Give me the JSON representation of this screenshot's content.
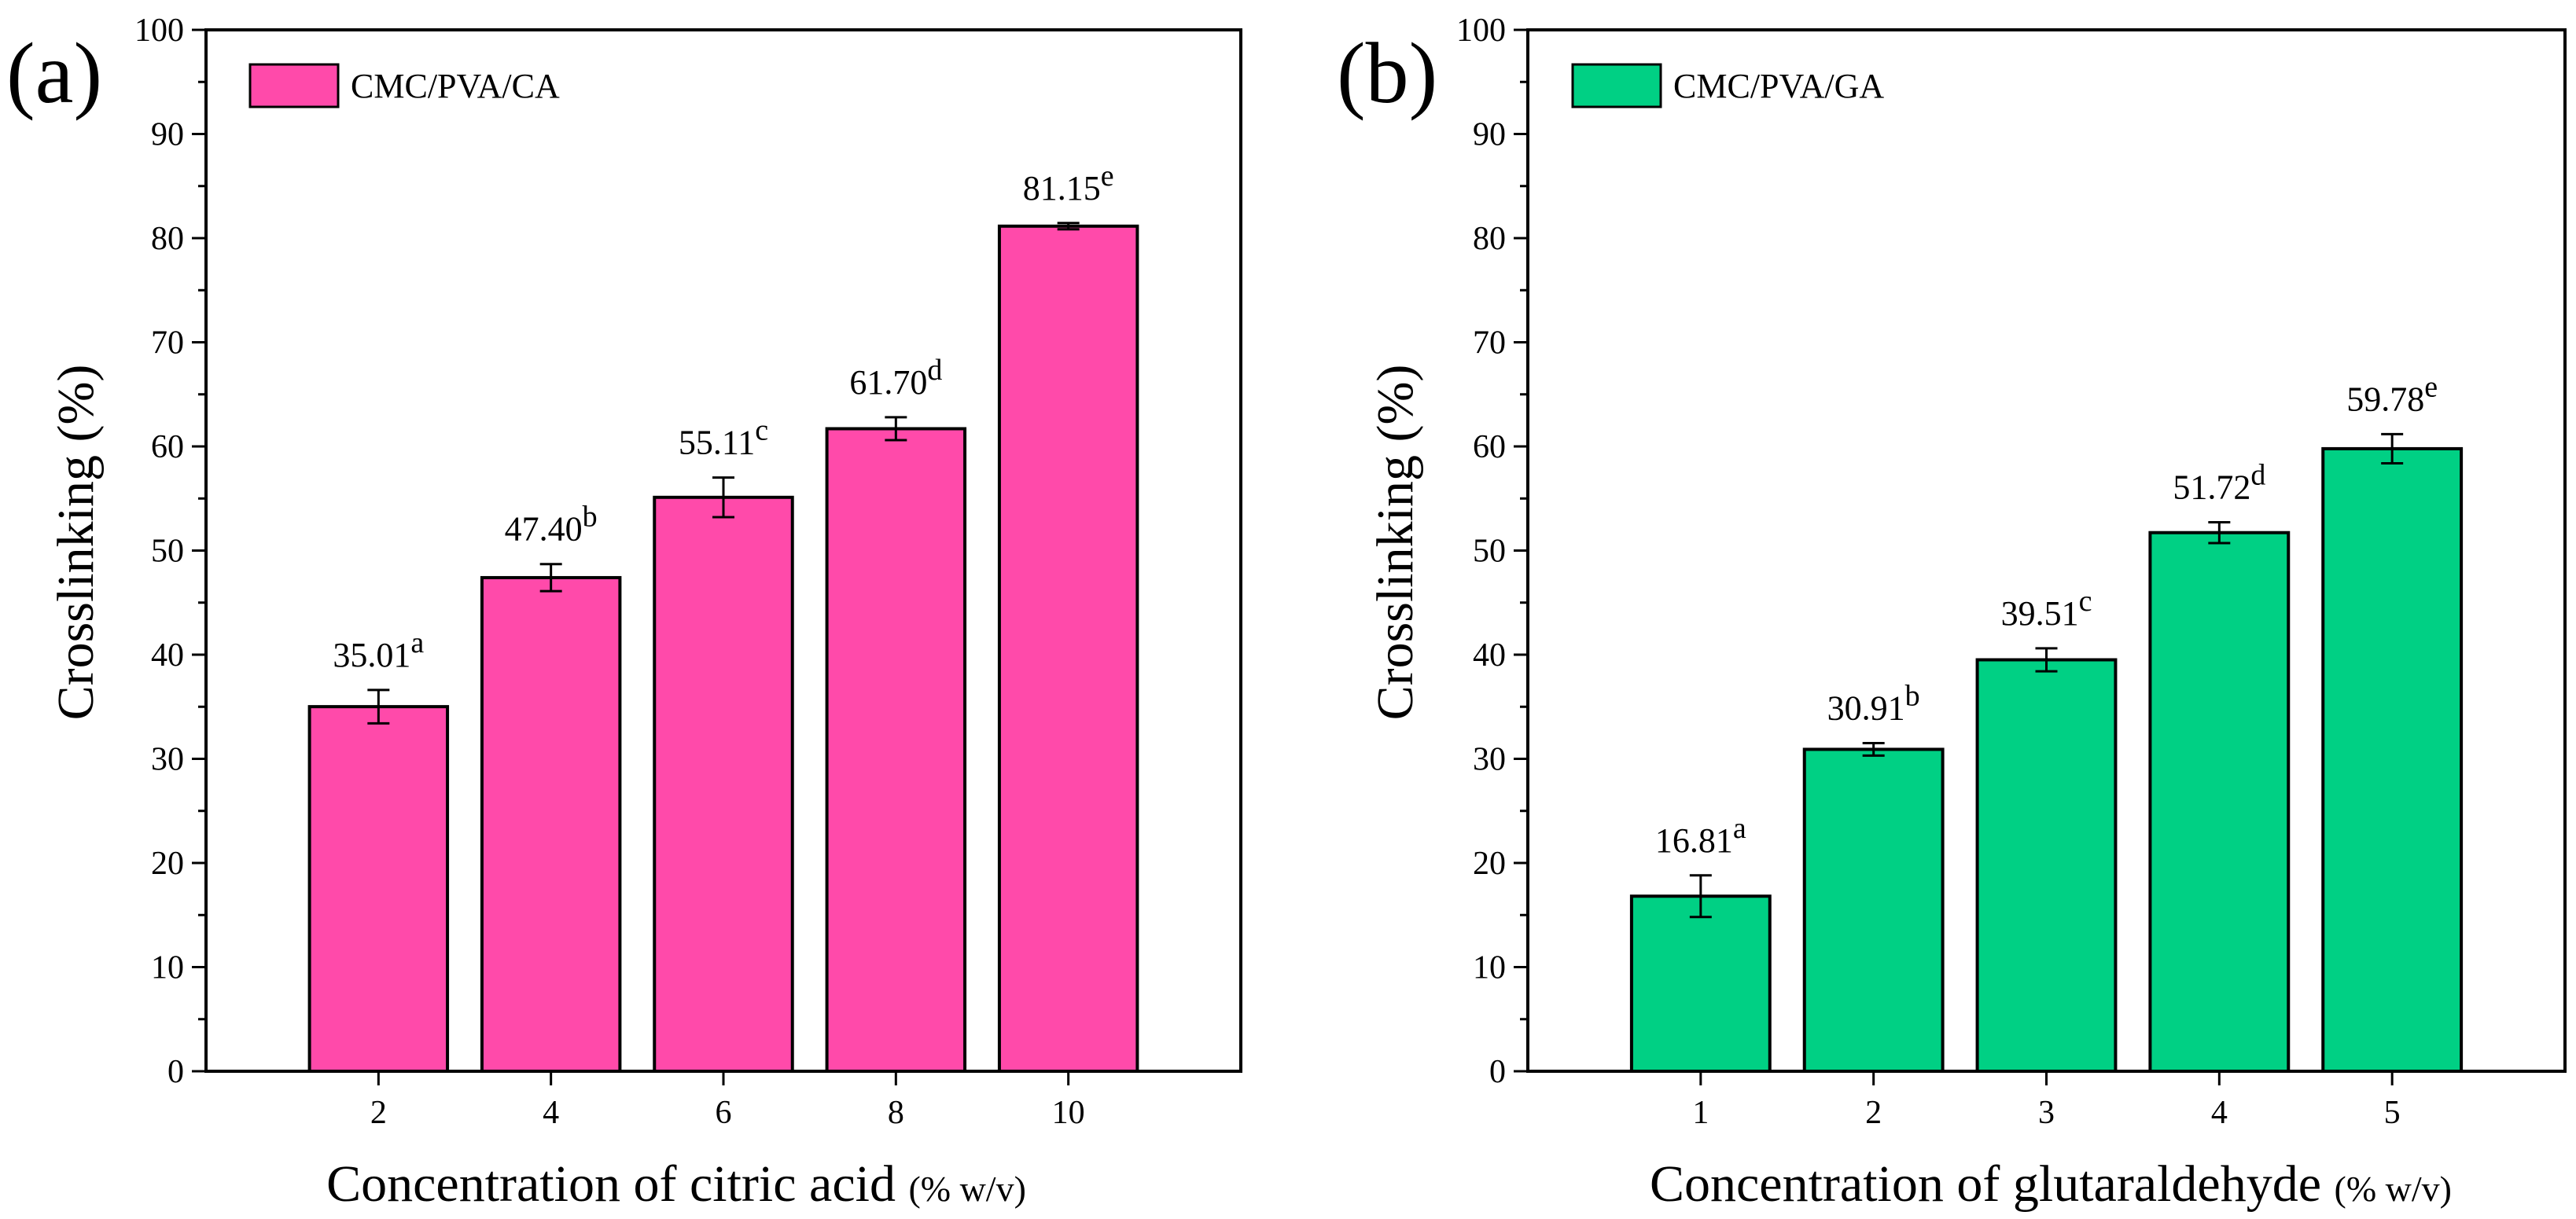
{
  "chart_data": [
    {
      "type": "bar",
      "panel_label": "(a)",
      "title": "",
      "xlabel_main": "Concentration of citric acid ",
      "xlabel_unit": "(% w/v)",
      "ylabel": "Crosslinking (%)",
      "ylim": [
        0,
        100
      ],
      "yticks": [
        "0",
        "10",
        "20",
        "30",
        "40",
        "50",
        "60",
        "70",
        "80",
        "90",
        "100"
      ],
      "categories": [
        "2",
        "4",
        "6",
        "8",
        "10"
      ],
      "values": [
        35.01,
        47.4,
        55.11,
        61.7,
        81.15
      ],
      "errors": [
        1.6,
        1.3,
        1.9,
        1.1,
        0.3
      ],
      "value_labels": [
        "35.01",
        "47.40",
        "55.11",
        "61.70",
        "81.15"
      ],
      "superscripts": [
        "a",
        "b",
        "c",
        "d",
        "e"
      ],
      "legend": "CMC/PVA/CA",
      "legend_position": "top-left",
      "color": "#ff4aaa",
      "grid": false
    },
    {
      "type": "bar",
      "panel_label": "(b)",
      "title": "",
      "xlabel_main": "Concentration of glutaraldehyde ",
      "xlabel_unit": "(% w/v)",
      "ylabel": "Crosslinking (%)",
      "ylim": [
        0,
        100
      ],
      "yticks": [
        "0",
        "10",
        "20",
        "30",
        "40",
        "50",
        "60",
        "70",
        "80",
        "90",
        "100"
      ],
      "categories": [
        "1",
        "2",
        "3",
        "4",
        "5"
      ],
      "values": [
        16.81,
        30.91,
        39.51,
        51.72,
        59.78
      ],
      "errors": [
        2.0,
        0.6,
        1.1,
        1.0,
        1.4
      ],
      "value_labels": [
        "16.81",
        "30.91",
        "39.51",
        "51.72",
        "59.78"
      ],
      "superscripts": [
        "a",
        "b",
        "c",
        "d",
        "e"
      ],
      "legend": "CMC/PVA/GA",
      "legend_position": "top-left",
      "color": "#00d084",
      "grid": false
    }
  ]
}
